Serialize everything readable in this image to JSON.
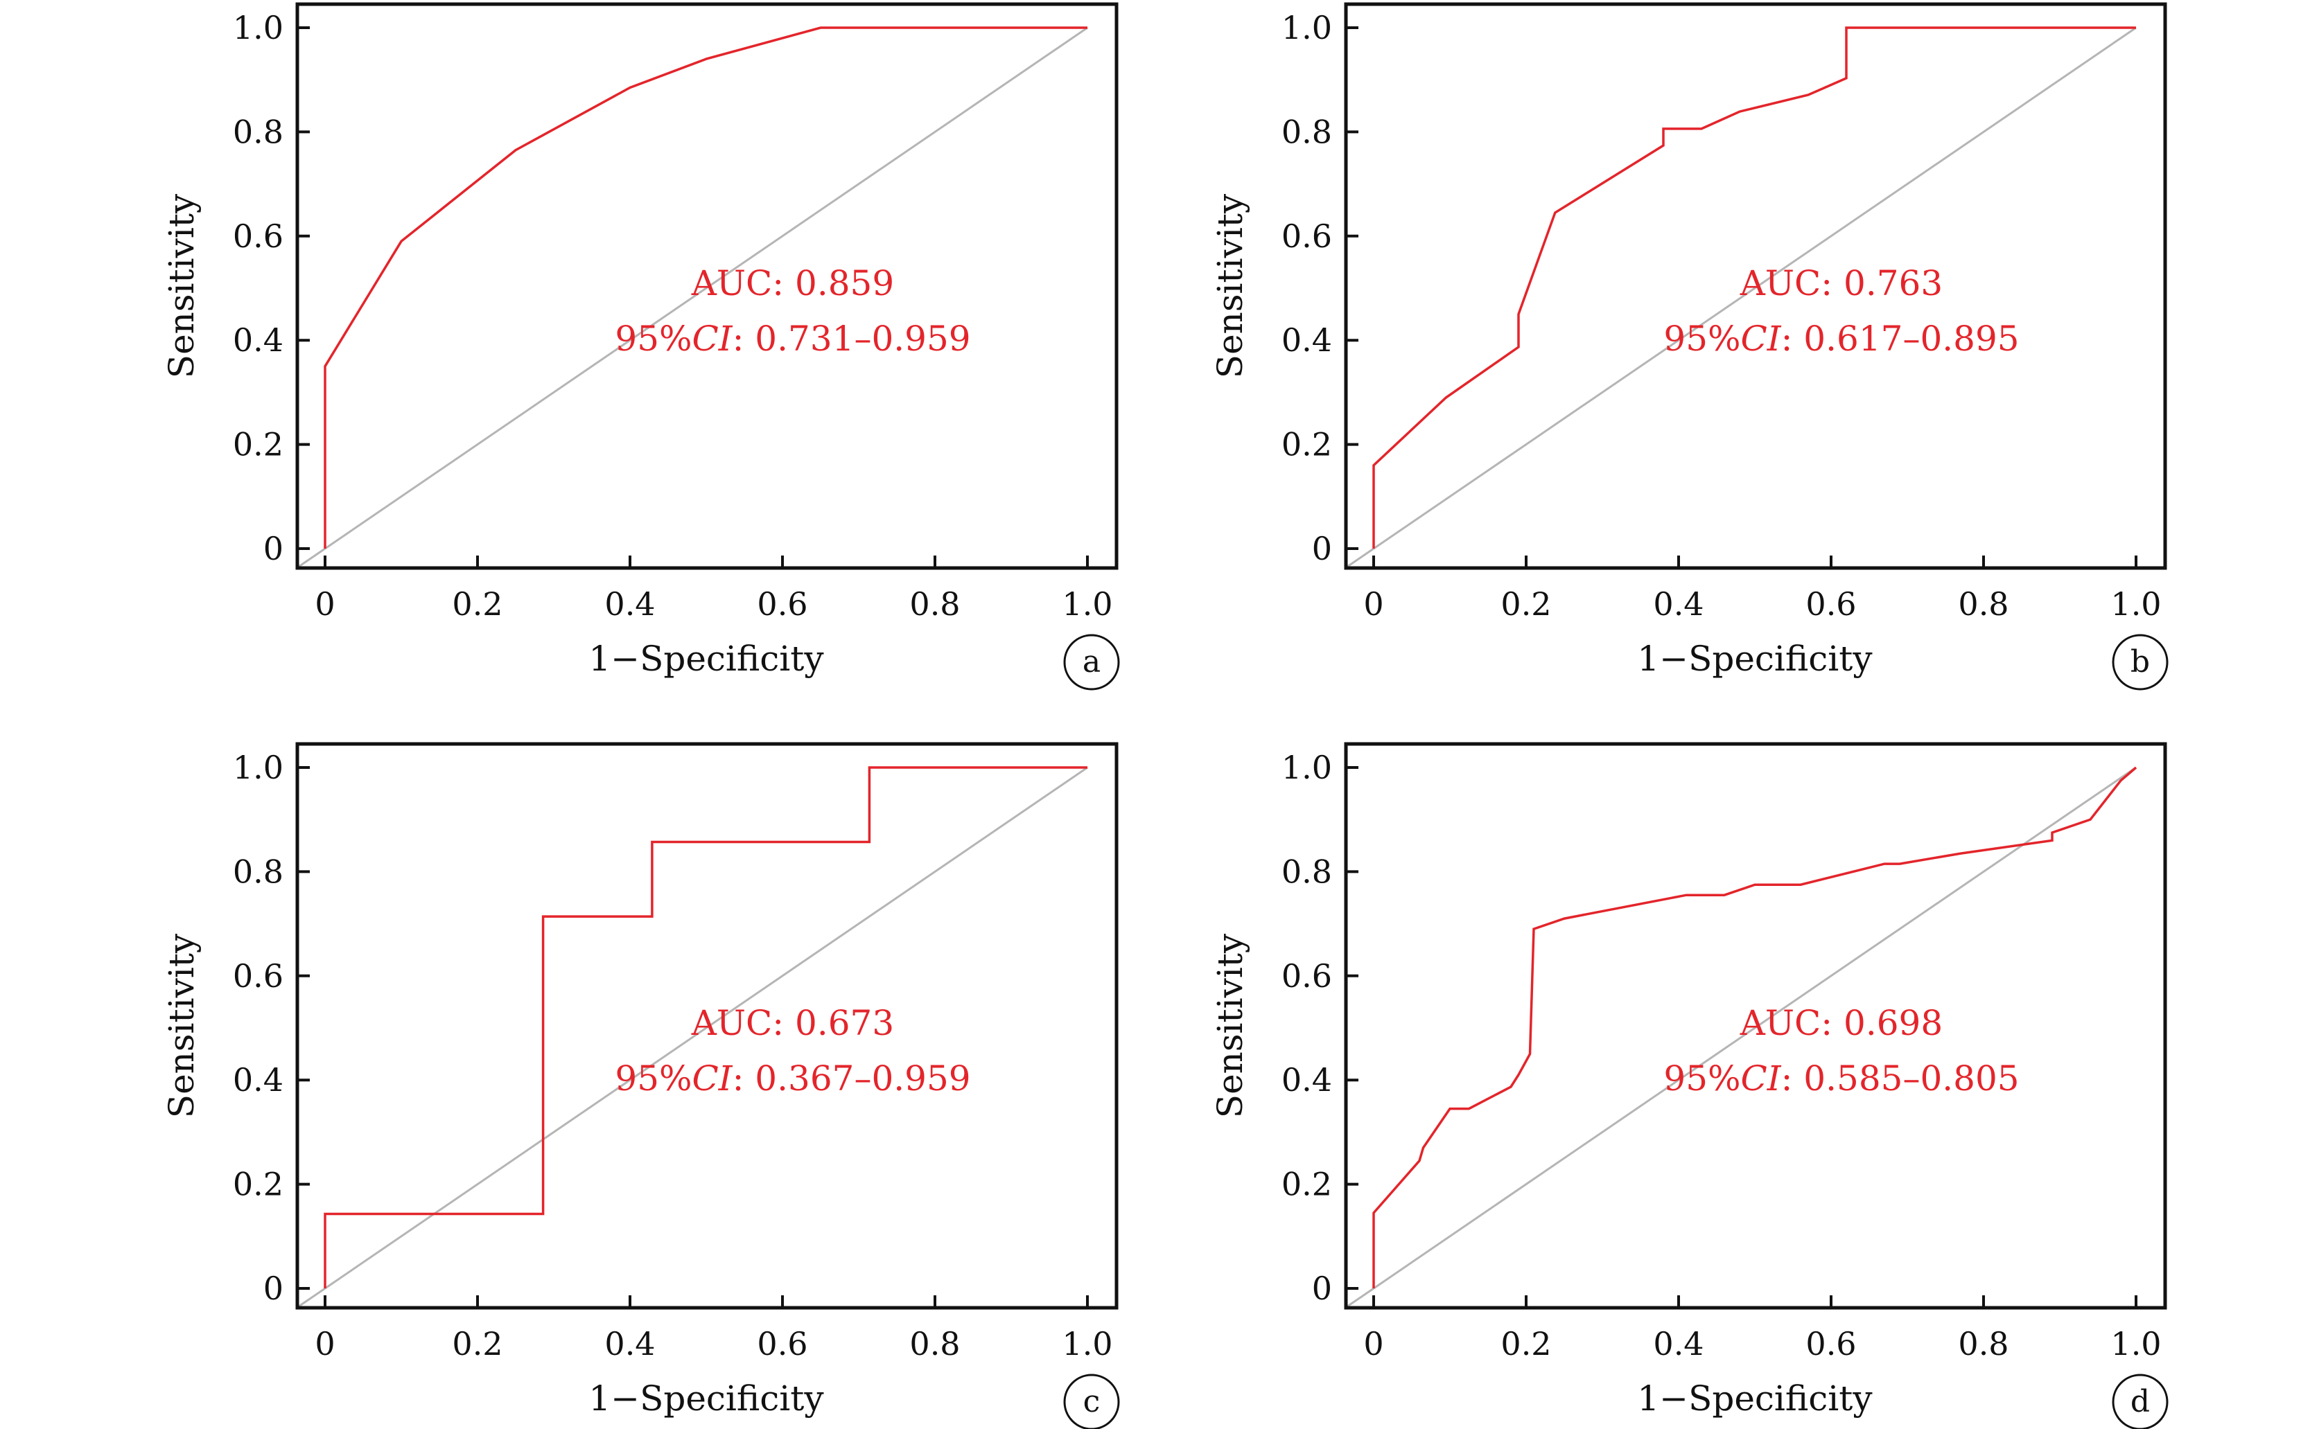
{
  "chart_data": [
    {
      "type": "line",
      "panel_label": "a",
      "xlabel": "1−Specificity",
      "ylabel": "Sensitivity",
      "xlim": [
        0,
        1.0
      ],
      "ylim": [
        0,
        1.0
      ],
      "xticks": [
        "0",
        "0.2",
        "0.4",
        "0.6",
        "0.8",
        "1.0"
      ],
      "yticks": [
        "0",
        "0.2",
        "0.4",
        "0.6",
        "0.8",
        "1.0"
      ],
      "annotation": {
        "auc_text": "AUC: 0.859",
        "ci_prefix": "95%",
        "ci_italic": "CI",
        "ci_suffix": ": 0.731–0.959"
      },
      "colors": {
        "roc": "#e3252b",
        "reference": "#b5b5b5"
      },
      "grid": false,
      "series": [
        {
          "x": [
            0,
            0,
            0.1,
            0.25,
            0.4,
            0.5,
            0.65,
            1.0
          ],
          "y": [
            0,
            0.35,
            0.59,
            0.765,
            0.885,
            0.94,
            1.0,
            1.0
          ]
        }
      ]
    },
    {
      "type": "line",
      "panel_label": "b",
      "xlabel": "1−Specificity",
      "ylabel": "Sensitivity",
      "xlim": [
        0,
        1.0
      ],
      "ylim": [
        0,
        1.0
      ],
      "xticks": [
        "0",
        "0.2",
        "0.4",
        "0.6",
        "0.8",
        "1.0"
      ],
      "yticks": [
        "0",
        "0.2",
        "0.4",
        "0.6",
        "0.8",
        "1.0"
      ],
      "annotation": {
        "auc_text": "AUC: 0.763",
        "ci_prefix": "95%",
        "ci_italic": "CI",
        "ci_suffix": ": 0.617–0.895"
      },
      "colors": {
        "roc": "#e3252b",
        "reference": "#b5b5b5"
      },
      "grid": false,
      "series": [
        {
          "x": [
            0,
            0,
            0.095,
            0.19,
            0.19,
            0.238,
            0.38,
            0.38,
            0.43,
            0.48,
            0.57,
            0.62,
            0.62,
            1.0
          ],
          "y": [
            0,
            0.16,
            0.29,
            0.387,
            0.45,
            0.645,
            0.774,
            0.806,
            0.806,
            0.839,
            0.871,
            0.903,
            1.0,
            1.0
          ]
        }
      ]
    },
    {
      "type": "line",
      "panel_label": "c",
      "xlabel": "1−Specificity",
      "ylabel": "Sensitivity",
      "xlim": [
        0,
        1.0
      ],
      "ylim": [
        0,
        1.0
      ],
      "xticks": [
        "0",
        "0.2",
        "0.4",
        "0.6",
        "0.8",
        "1.0"
      ],
      "yticks": [
        "0",
        "0.2",
        "0.4",
        "0.6",
        "0.8",
        "1.0"
      ],
      "annotation": {
        "auc_text": "AUC: 0.673",
        "ci_prefix": "95%",
        "ci_italic": "CI",
        "ci_suffix": ": 0.367–0.959"
      },
      "colors": {
        "roc": "#e3252b",
        "reference": "#b5b5b5"
      },
      "grid": false,
      "series": [
        {
          "x": [
            0,
            0,
            0.286,
            0.286,
            0.429,
            0.429,
            0.714,
            0.714,
            1.0
          ],
          "y": [
            0,
            0.143,
            0.143,
            0.714,
            0.714,
            0.857,
            0.857,
            1.0,
            1.0
          ]
        }
      ]
    },
    {
      "type": "line",
      "panel_label": "d",
      "xlabel": "1−Specificity",
      "ylabel": "Sensitivity",
      "xlim": [
        0,
        1.0
      ],
      "ylim": [
        0,
        1.0
      ],
      "xticks": [
        "0",
        "0.2",
        "0.4",
        "0.6",
        "0.8",
        "1.0"
      ],
      "yticks": [
        "0",
        "0.2",
        "0.4",
        "0.6",
        "0.8",
        "1.0"
      ],
      "annotation": {
        "auc_text": "AUC: 0.698",
        "ci_prefix": "95%",
        "ci_italic": "CI",
        "ci_suffix": ": 0.585–0.805"
      },
      "colors": {
        "roc": "#e3252b",
        "reference": "#b5b5b5"
      },
      "grid": false,
      "series": [
        {
          "x": [
            0,
            0,
            0.06,
            0.065,
            0.1,
            0.125,
            0.18,
            0.19,
            0.205,
            0.21,
            0.25,
            0.41,
            0.46,
            0.5,
            0.56,
            0.67,
            0.69,
            0.77,
            0.89,
            0.89,
            0.94,
            0.98,
            1.0
          ],
          "y": [
            0,
            0.145,
            0.245,
            0.27,
            0.345,
            0.345,
            0.387,
            0.41,
            0.45,
            0.69,
            0.71,
            0.755,
            0.755,
            0.775,
            0.775,
            0.815,
            0.815,
            0.835,
            0.86,
            0.875,
            0.9,
            0.975,
            1.0
          ]
        }
      ]
    }
  ]
}
